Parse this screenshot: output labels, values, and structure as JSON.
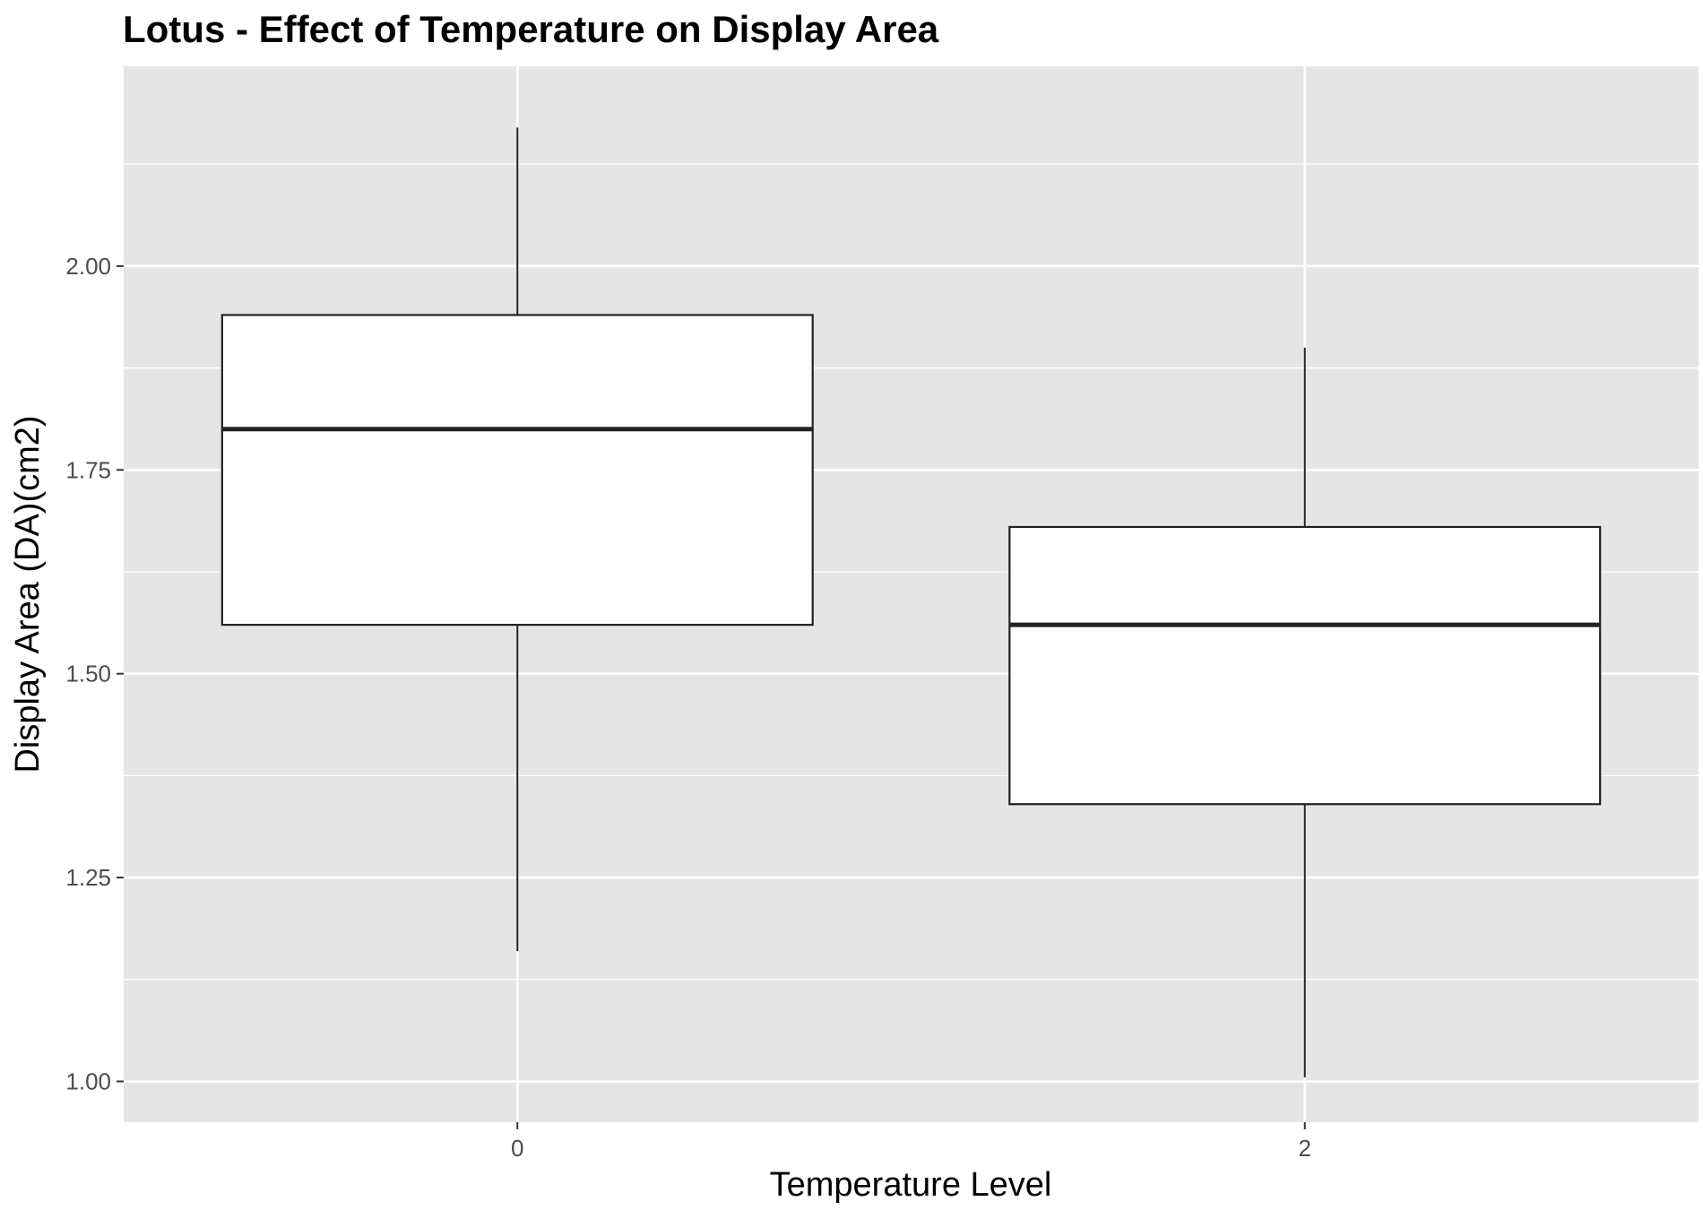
{
  "chart_data": {
    "type": "box",
    "title": "Lotus - Effect of Temperature on Display Area",
    "xlabel": "Temperature Level",
    "ylabel": "Display Area (DA)(cm2)",
    "categories": [
      "0",
      "2"
    ],
    "boxes": [
      {
        "category": "0",
        "whisker_low": 1.16,
        "q1": 1.56,
        "median": 1.8,
        "q3": 1.94,
        "whisker_high": 2.17
      },
      {
        "category": "2",
        "whisker_low": 1.005,
        "q1": 1.34,
        "median": 1.56,
        "q3": 1.68,
        "whisker_high": 1.9
      }
    ],
    "ylim": [
      0.95,
      2.245
    ],
    "y_ticks": [
      1.0,
      1.25,
      1.5,
      1.75,
      2.0
    ],
    "y_tick_labels": [
      "1.00",
      "1.25",
      "1.50",
      "1.75",
      "2.00"
    ],
    "y_minor_ticks": [
      1.125,
      1.375,
      1.625,
      1.875,
      2.125
    ],
    "grid": true,
    "legend": "none",
    "colors": {
      "panel_background": "#e5e5e5",
      "grid_line": "#ffffff",
      "box_fill": "#ffffff",
      "box_line": "#222222",
      "tick_text": "#4d4d4d"
    }
  }
}
